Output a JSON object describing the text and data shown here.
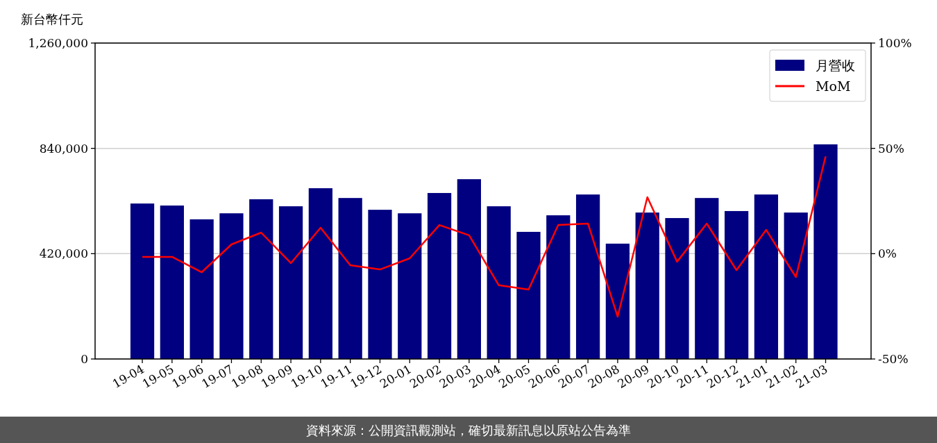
{
  "chart_data": {
    "type": "bar",
    "ylabel": "新台幣仟元",
    "categories": [
      "19-04",
      "19-05",
      "19-06",
      "19-07",
      "19-08",
      "19-09",
      "19-10",
      "19-11",
      "19-12",
      "20-01",
      "20-02",
      "20-03",
      "20-04",
      "20-05",
      "20-06",
      "20-07",
      "20-08",
      "20-09",
      "20-10",
      "20-11",
      "20-12",
      "21-01",
      "21-02",
      "21-03"
    ],
    "series": [
      {
        "name": "月營收",
        "color": "#000080",
        "values": [
          620000,
          612000,
          557000,
          581000,
          637000,
          609000,
          681000,
          642000,
          595000,
          581000,
          662000,
          717000,
          609000,
          507000,
          573000,
          656000,
          460000,
          584000,
          562000,
          642000,
          590000,
          656000,
          584000,
          856000
        ]
      },
      {
        "name": "MoM",
        "type": "line",
        "axis": "y2",
        "color": "#ff0000",
        "values": [
          -1.5,
          -1.5,
          -8.8,
          4.4,
          10,
          -4.5,
          12.3,
          -5.5,
          -7.5,
          -2.2,
          13.6,
          8.7,
          -15,
          -17,
          13.6,
          14.3,
          -29.9,
          26.8,
          -3.8,
          14.3,
          -7.8,
          11.3,
          -11.1,
          46.2
        ]
      }
    ],
    "ylim": [
      0,
      1260000
    ],
    "yticks": [
      {
        "value": 0,
        "label": "0"
      },
      {
        "value": 420000,
        "label": "420,000"
      },
      {
        "value": 840000,
        "label": "840,000"
      },
      {
        "value": 1260000,
        "label": "1,260,000"
      }
    ],
    "y2lim": [
      -50,
      100
    ],
    "y2ticks": [
      {
        "value": -50,
        "label": "-50%"
      },
      {
        "value": 0,
        "label": "0%"
      },
      {
        "value": 50,
        "label": "50%"
      },
      {
        "value": 100,
        "label": "100%"
      }
    ],
    "grid": "y",
    "legend": "top right",
    "annotations": [
      "資料來源：公開資訊觀測站，確切最新訊息以原站公告為準"
    ]
  }
}
